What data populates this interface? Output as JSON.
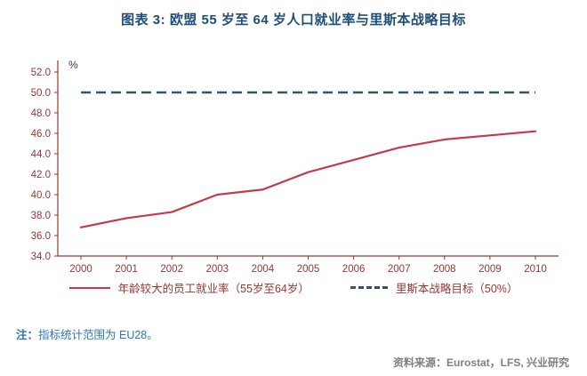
{
  "title": "图表 3: 欧盟 55 岁至 64 岁人口就业率与里斯本战略目标",
  "chart_data": {
    "type": "line",
    "x": [
      2000,
      2001,
      2002,
      2003,
      2004,
      2005,
      2006,
      2007,
      2008,
      2009,
      2010
    ],
    "series": [
      {
        "name": "年龄较大的员工就业率（55岁至64岁）",
        "style": "solid",
        "color": "#C53A4B",
        "values": [
          36.8,
          37.7,
          38.3,
          40.0,
          40.5,
          42.2,
          43.4,
          44.6,
          45.4,
          45.8,
          46.2
        ]
      },
      {
        "name": "里斯本战略目标（50%）",
        "style": "dashed",
        "color": "#31556E",
        "values": [
          50,
          50,
          50,
          50,
          50,
          50,
          50,
          50,
          50,
          50,
          50
        ]
      }
    ],
    "title": "图表 3: 欧盟 55 岁至 64 岁人口就业率与里斯本战略目标",
    "xlabel": "",
    "ylabel": "%",
    "ylim": [
      34.0,
      52.0
    ],
    "ytick_step": 2.0,
    "grid": false,
    "legend_position": "bottom"
  },
  "note": {
    "label": "注：",
    "text": "指标统计范围为 EU28。"
  },
  "source": "资料来源：Eurostat，LFS, 兴业研究",
  "colors": {
    "title": "#1F4E79",
    "axis": "#953735",
    "note": "#2E75B6",
    "source": "#7F7F7F",
    "percent_label": "#404040"
  }
}
